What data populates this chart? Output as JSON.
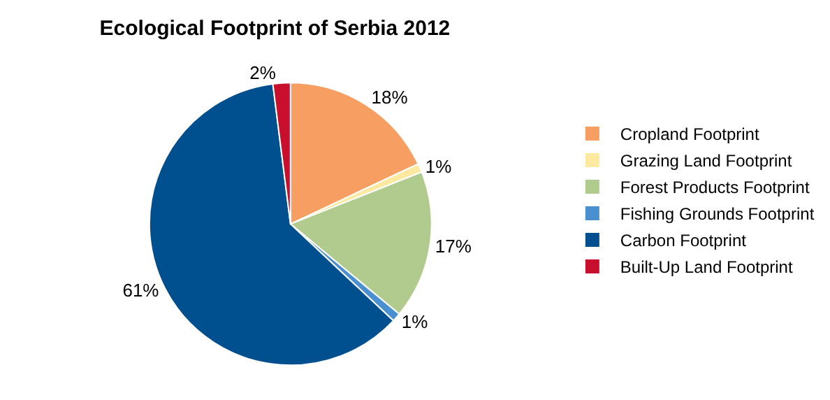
{
  "chart_data": {
    "type": "pie",
    "title": "Ecological Footprint of Serbia 2012",
    "categories": [
      "Cropland Footprint",
      "Grazing Land Footprint",
      "Forest Products Footprint",
      "Fishing Grounds Footprint",
      "Carbon Footprint",
      "Built-Up Land Footprint"
    ],
    "values": [
      18,
      1,
      17,
      1,
      61,
      2
    ],
    "colors": [
      "#f79f62",
      "#fde9a0",
      "#b0cb8d",
      "#4a8fd0",
      "#00508f",
      "#c8102e"
    ],
    "value_labels": [
      "18%",
      "1%",
      "17%",
      "1%",
      "61%",
      "2%"
    ],
    "legend": "right"
  }
}
